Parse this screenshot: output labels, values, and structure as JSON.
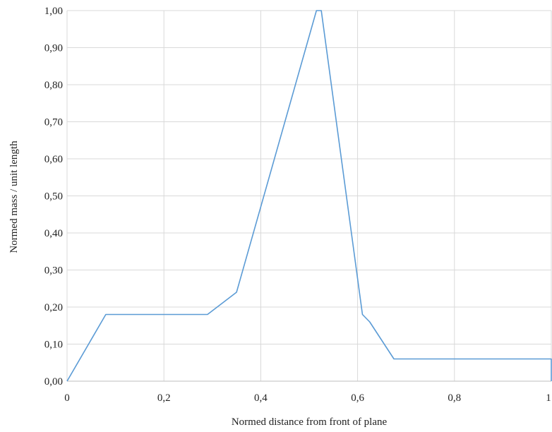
{
  "chart_data": {
    "type": "line",
    "title": "",
    "xlabel": "Normed distance from front of plane",
    "ylabel": "Normed mass / unit length",
    "xlim": [
      0,
      1
    ],
    "ylim": [
      0,
      1
    ],
    "xticks": [
      0,
      0.2,
      0.4,
      0.6,
      0.8,
      1
    ],
    "xtick_labels": [
      "0",
      "0,2",
      "0,4",
      "0,6",
      "0,8",
      "1"
    ],
    "yticks": [
      0,
      0.1,
      0.2,
      0.3,
      0.4,
      0.5,
      0.6,
      0.7,
      0.8,
      0.9,
      1.0
    ],
    "ytick_labels": [
      "0,00",
      "0,10",
      "0,20",
      "0,30",
      "0,40",
      "0,50",
      "0,60",
      "0,70",
      "0,80",
      "0,90",
      "1,00"
    ],
    "grid": true,
    "series": [
      {
        "color": "#5b9bd5",
        "x": [
          0,
          0.08,
          0.29,
          0.35,
          0.515,
          0.525,
          0.61,
          0.625,
          0.675,
          1.0,
          1.0
        ],
        "y": [
          0,
          0.18,
          0.18,
          0.24,
          1.0,
          1.0,
          0.18,
          0.16,
          0.06,
          0.06,
          0
        ]
      }
    ]
  }
}
